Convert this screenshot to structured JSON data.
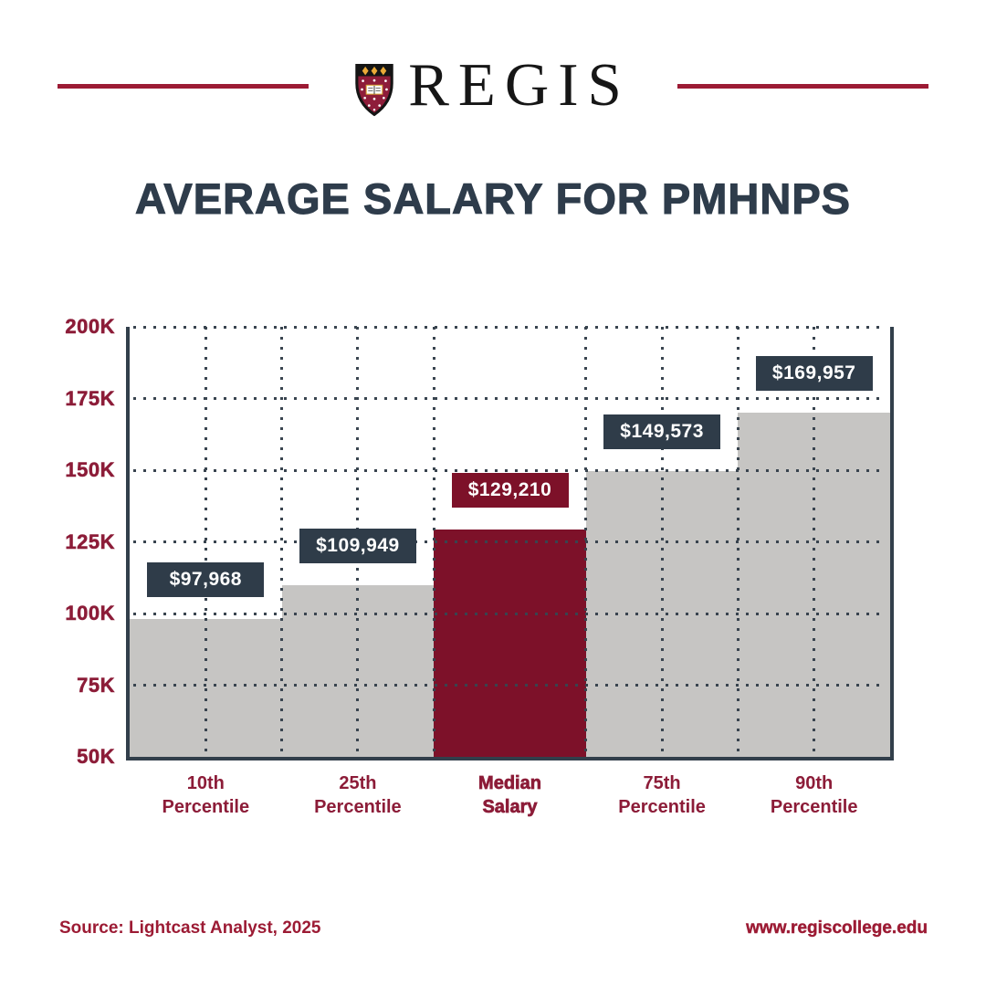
{
  "header": {
    "brand": "REGIS",
    "crest_icon": "regis-crest-shield-icon",
    "rule_color": "#9c1b34"
  },
  "title": "AVERAGE SALARY FOR PMHNPS",
  "chart_data": {
    "type": "bar",
    "title": "AVERAGE SALARY FOR PMHNPS",
    "categories": [
      [
        "10th",
        "Percentile"
      ],
      [
        "25th",
        "Percentile"
      ],
      [
        "Median",
        "Salary"
      ],
      [
        "75th",
        "Percentile"
      ],
      [
        "90th",
        "Percentile"
      ]
    ],
    "values": [
      97968,
      109949,
      129210,
      149573,
      169957
    ],
    "value_labels": [
      "$97,968",
      "$109,949",
      "$129,210",
      "$149,573",
      "$169,957"
    ],
    "highlight_index": 2,
    "ylim": [
      50000,
      200000
    ],
    "yticks": [
      50000,
      75000,
      100000,
      125000,
      150000,
      175000,
      200000
    ],
    "ytick_labels": [
      "50K",
      "75K",
      "100K",
      "125K",
      "150K",
      "175K",
      "200K"
    ],
    "grid": "dotted",
    "legend": "none",
    "vgrid_positions_bar_units": [
      0.5,
      1,
      1.5,
      2,
      3,
      3.5,
      4,
      4.5
    ],
    "colors": {
      "bar": "#c6c5c3",
      "highlight_bar": "#7d1129",
      "value_box": "#2f3c49",
      "value_box_highlight": "#7d1129",
      "value_text": "#ffffff",
      "grid_dots": "#39444f",
      "axis": "#323f4b",
      "tick_text": "#8c1c38"
    }
  },
  "footer": {
    "source": "Source: Lightcast Analyst, 2025",
    "website": "www.regiscollege.edu"
  }
}
